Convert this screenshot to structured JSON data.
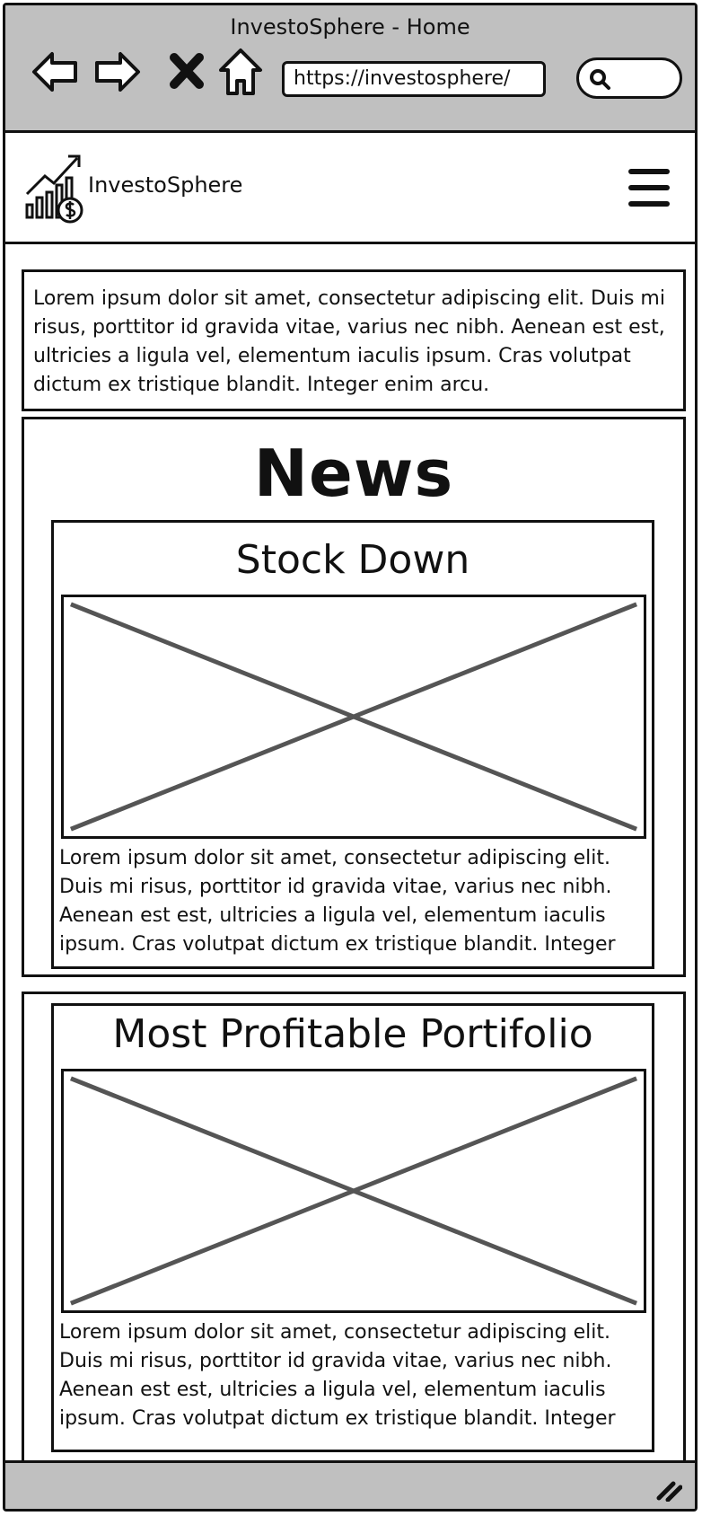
{
  "window": {
    "title": "InvestoSphere - Home",
    "url": "https://investosphere/",
    "search_placeholder": ""
  },
  "icons": {
    "back": "back-arrow-icon",
    "forward": "forward-arrow-icon",
    "stop": "close-icon",
    "home": "home-icon",
    "search": "search-icon",
    "logo": "chart-growth-logo-icon",
    "menu": "hamburger-menu-icon",
    "resize": "resize-grip-icon"
  },
  "header": {
    "brand": "InvestoSphere"
  },
  "intro": {
    "text": "Lorem ipsum dolor sit amet, consectetur adipiscing elit. Duis mi risus, porttitor id gravida vitae, varius nec nibh. Aenean est est, ultricies a ligula vel, elementum iaculis ipsum. Cras volutpat dictum ex tristique blandit. Integer enim arcu."
  },
  "news": {
    "title": "News",
    "card": {
      "title": "Stock Down",
      "text": "Lorem ipsum dolor sit amet, consectetur adipiscing elit. Duis mi risus, porttitor id gravida vitae, varius nec nibh. Aenean est est, ultricies a ligula vel, elementum iaculis ipsum. Cras volutpat dictum ex tristique blandit. Integer"
    }
  },
  "portfolio": {
    "card": {
      "title": "Most Profitable Portifolio",
      "text": "Lorem ipsum dolor sit amet, consectetur adipiscing elit. Duis mi risus, porttitor id gravida vitae, varius nec nibh. Aenean est est, ultricies a ligula vel, elementum iaculis ipsum. Cras volutpat dictum ex tristique blandit. Integer"
    }
  },
  "colors": {
    "chrome": "#c0c0c0",
    "ink": "#111111",
    "placeholder_cross": "#555555"
  }
}
